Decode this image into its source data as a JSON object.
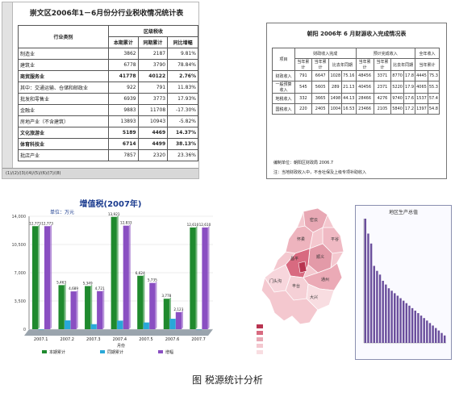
{
  "sheet": {
    "title": "崇文区2006年1－6月份分行业税收情况统计表",
    "header_group": "区级税收",
    "col_industry": "行业类别",
    "col_current": "本期累计",
    "col_prior": "同期累计",
    "col_growth": "同比增幅",
    "rows": [
      {
        "name": "制造业",
        "current": "3862",
        "prior": "2187",
        "growth": "9.81%"
      },
      {
        "name": "建筑业",
        "current": "6778",
        "prior": "3790",
        "growth": "78.84%"
      },
      {
        "name": "商贸服务业",
        "current": "41778",
        "prior": "40122",
        "growth": "2.76%"
      },
      {
        "name": "其中：交通运输、仓储和邮政业",
        "current": "922",
        "prior": "791",
        "growth": "11.83%"
      },
      {
        "name": "批发和零售业",
        "current": "6939",
        "prior": "3773",
        "growth": "17.93%"
      },
      {
        "name": "金融业",
        "current": "9883",
        "prior": "11708",
        "growth": "-17.30%"
      },
      {
        "name": "房地产业（不含建筑）",
        "current": "13893",
        "prior": "10943",
        "growth": "-5.82%"
      },
      {
        "name": "文化旅游业",
        "current": "5189",
        "prior": "4469",
        "growth": "14.37%"
      },
      {
        "name": "体育科技业",
        "current": "6714",
        "prior": "4499",
        "growth": "38.13%"
      },
      {
        "name": "批店产业",
        "current": "7857",
        "prior": "2320",
        "growth": "23.36%"
      }
    ],
    "tabs": "(1)/(2)/(3)/(4)/(5)/(6)/(7)/(8)"
  },
  "report": {
    "title": "朝阳 2006年 6 月财源收入完成情况表",
    "col_item": "项目",
    "col_group1": "财政收入完成",
    "col_group2": "预计完成收入",
    "col_group3": "全年收入",
    "sub1": "当年累计",
    "sub2": "比去年同期",
    "rows": [
      {
        "name": "财政收入",
        "c": [
          "791",
          "6647",
          "1028",
          "75.16",
          "48456",
          "3371",
          "8770",
          "17.8",
          "4445",
          "75.3"
        ]
      },
      {
        "name": "一般预算收入",
        "c": [
          "545",
          "5605",
          "289",
          "21.13",
          "40456",
          "2371",
          "5220",
          "17.9",
          "4065",
          "55.3"
        ]
      },
      {
        "name": "地税收入",
        "c": [
          "332",
          "3665",
          "1498",
          "44.13",
          "28466",
          "4276",
          "9740",
          "17.6",
          "1537",
          "57.4"
        ]
      },
      {
        "name": "国税收入",
        "c": [
          "220",
          "2405",
          "1004",
          "16.53",
          "23466",
          "2105",
          "5840",
          "17.2",
          "1397",
          "54.8"
        ]
      }
    ],
    "foot": "编制单位：朝阳区财政局 2006.7",
    "note": "注：当地财政收入中，不含社保及上级专项补助收入"
  },
  "chart_data": {
    "type": "bar",
    "title": "增值税(2007年)",
    "unit_label": "单位：万元",
    "categories": [
      "2007.1",
      "2007.2",
      "2007.3",
      "2007.4",
      "2007.5",
      "2007.6",
      "2007.7"
    ],
    "series": [
      {
        "name": "本期累计",
        "color": "#1f8a2e",
        "values": [
          12773,
          5463,
          5349,
          13921,
          6624,
          3778,
          12610
        ]
      },
      {
        "name": "同期累计",
        "color": "#29a8d8",
        "values": [
          0,
          1094,
          625,
          1065,
          836,
          1295,
          0
        ]
      },
      {
        "name": "增幅",
        "color": "#8a4fc2",
        "values": [
          12773,
          4689,
          4721,
          12833,
          5735,
          2123,
          12610
        ]
      }
    ],
    "data_labels": [
      "12,773",
      "12,773",
      "5,463",
      "4,689",
      "5,349",
      "4,721",
      "13,921",
      "12,833",
      "6,624",
      "5,735",
      "3,778",
      "2,123",
      "12,610",
      "12,610"
    ],
    "ylim": [
      0,
      14000
    ],
    "yticks": [
      "0",
      "3,500",
      "7,000",
      "10,500",
      "14,000"
    ],
    "xlabel": "月份"
  },
  "map": {
    "title": "地区生产总值",
    "districts": [
      "门头沟",
      "昌平",
      "海淀",
      "朝阳",
      "丰台",
      "大兴",
      "通州",
      "顺义",
      "怀柔",
      "密云",
      "平谷",
      "延庆",
      "房山"
    ]
  },
  "bars": {
    "values": [
      100,
      88,
      80,
      62,
      58,
      55,
      50,
      47,
      44,
      42,
      40,
      38,
      36,
      34,
      32,
      30,
      28,
      26,
      24,
      22,
      20,
      18,
      16,
      14,
      12,
      10,
      8,
      6
    ]
  },
  "caption": "图   税源统计分析"
}
